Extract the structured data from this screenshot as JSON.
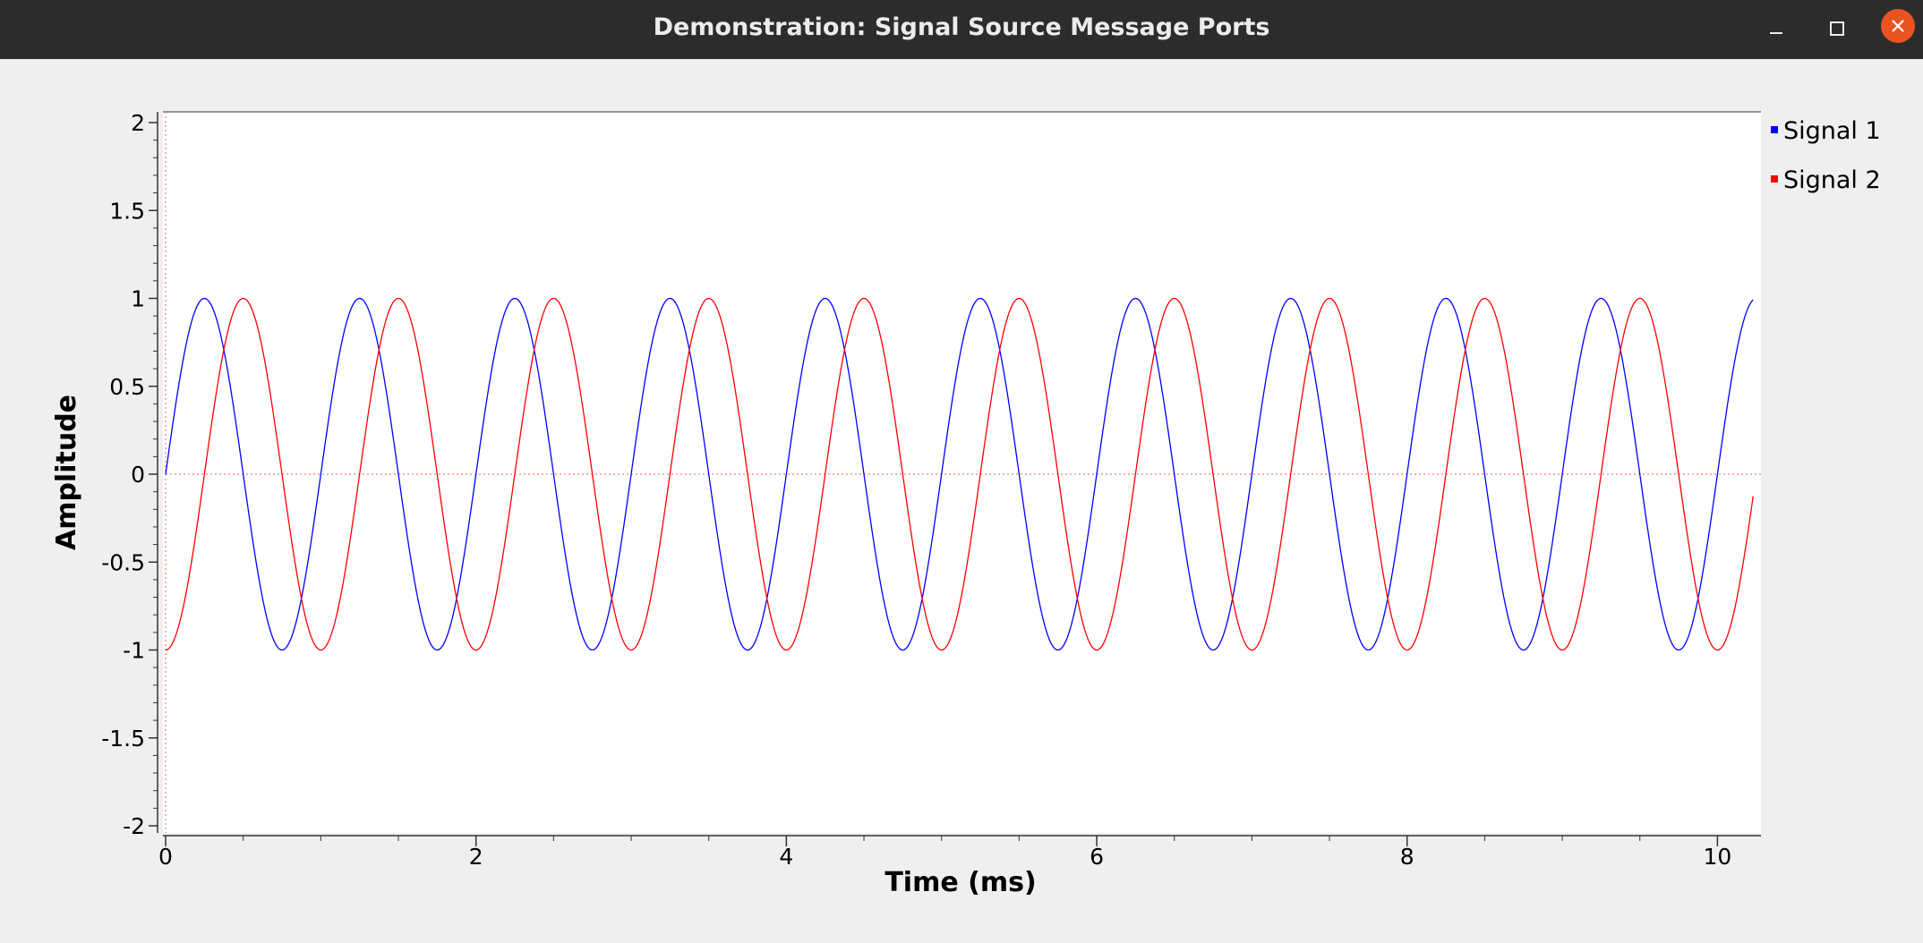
{
  "window": {
    "title": "Demonstration: Signal Source Message Ports",
    "minimize_icon": "minimize-icon",
    "maximize_icon": "maximize-icon",
    "close_icon": "close-icon",
    "close_color": "#e95420"
  },
  "chart_data": {
    "type": "line",
    "xlabel": "Time (ms)",
    "ylabel": "Amplitude",
    "xlim": [
      0,
      10.24
    ],
    "ylim": [
      -2,
      2
    ],
    "xticks": [
      0,
      2,
      4,
      6,
      8,
      10
    ],
    "xtick_labels": [
      "0",
      "2",
      "4",
      "6",
      "8",
      "10"
    ],
    "yticks": [
      2,
      1.5,
      1,
      0.5,
      0,
      -0.5,
      -1,
      -1.5,
      -2
    ],
    "ytick_labels": [
      "2",
      "1.5",
      "1",
      "0.5",
      "0",
      "-0.5",
      "-1",
      "-1.5",
      "-2"
    ],
    "legend_position": "top-right",
    "grid": false,
    "baseline_marker": {
      "y": 0,
      "color": "#f08080",
      "style": "dotted"
    },
    "series": [
      {
        "name": "Signal 1",
        "color": "#0000ff",
        "waveform": "sine",
        "frequency_khz": 1,
        "amplitude": 1,
        "phase_deg": 0,
        "x": [
          0,
          0.25,
          0.5,
          0.75,
          1.0,
          1.25,
          1.5,
          1.75,
          2.0,
          2.25,
          2.5,
          2.75,
          3.0,
          3.25,
          3.5,
          3.75,
          4.0,
          4.25,
          4.5,
          4.75,
          5.0,
          5.25,
          5.5,
          5.75,
          6.0,
          6.25,
          6.5,
          6.75,
          7.0,
          7.25,
          7.5,
          7.75,
          8.0,
          8.25,
          8.5,
          8.75,
          9.0,
          9.25,
          9.5,
          9.75,
          10.0,
          10.23
        ],
        "y": [
          0,
          1,
          0,
          -1,
          0,
          1,
          0,
          -1,
          0,
          1,
          0,
          -1,
          0,
          1,
          0,
          -1,
          0,
          1,
          0,
          -1,
          0,
          1,
          0,
          -1,
          0,
          1,
          0,
          -1,
          0,
          1,
          0,
          -1,
          0,
          1,
          0,
          -1,
          0,
          1,
          0,
          -1,
          0,
          1
        ]
      },
      {
        "name": "Signal 2",
        "color": "#ff0000",
        "waveform": "sine",
        "frequency_khz": 1,
        "amplitude": 1,
        "phase_deg": -90,
        "x": [
          0,
          0.25,
          0.5,
          0.75,
          1.0,
          1.25,
          1.5,
          1.75,
          2.0,
          2.25,
          2.5,
          2.75,
          3.0,
          3.25,
          3.5,
          3.75,
          4.0,
          4.25,
          4.5,
          4.75,
          5.0,
          5.25,
          5.5,
          5.75,
          6.0,
          6.25,
          6.5,
          6.75,
          7.0,
          7.25,
          7.5,
          7.75,
          8.0,
          8.25,
          8.5,
          8.75,
          9.0,
          9.25,
          9.5,
          9.75,
          10.0,
          10.23
        ],
        "y": [
          -1,
          0,
          1,
          0,
          -1,
          0,
          1,
          0,
          -1,
          0,
          1,
          0,
          -1,
          0,
          1,
          0,
          -1,
          0,
          1,
          0,
          -1,
          0,
          1,
          0,
          -1,
          0,
          1,
          0,
          -1,
          0,
          1,
          0,
          -1,
          0,
          1,
          0,
          -1,
          0,
          1,
          0,
          -1,
          -0.07
        ]
      }
    ]
  }
}
